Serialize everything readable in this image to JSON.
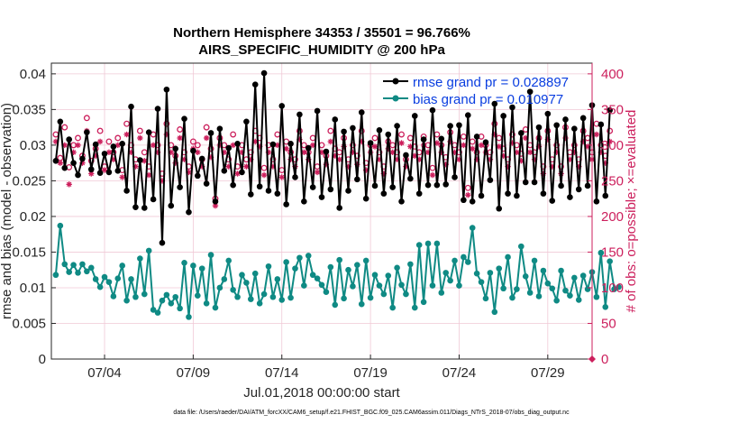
{
  "chart_data": {
    "type": "line",
    "title_line1": "Northern Hemisphere 34353 / 35501 = 96.766%",
    "title_line2": "AIRS_SPECIFIC_HUMIDITY @ 200 hPa",
    "xlabel": "Jul.01,2018 00:00:00 start",
    "ylabel_left": "rmse and bias (model - observation)",
    "ylabel_right": "# of obs: o=possible; ×=evaluated",
    "footer": "data file: /Users/raeder/DAI/ATM_forcXX/CAM6_setup/f.e21.FHIST_BGC.f09_025.CAM6assim.011/Diags_NTrS_2018-07/obs_diag_output.nc",
    "x_ticks": [
      "07/04",
      "07/09",
      "07/14",
      "07/19",
      "07/24",
      "07/29"
    ],
    "x_tick_days": [
      4,
      9,
      14,
      19,
      24,
      29
    ],
    "xlim": [
      1.0,
      31.5
    ],
    "ylim_left": [
      0,
      0.0415
    ],
    "ylim_right": [
      0,
      415
    ],
    "y_ticks_left": [
      "0",
      "0.005",
      "0.01",
      "0.015",
      "0.02",
      "0.025",
      "0.03",
      "0.035",
      "0.04"
    ],
    "y_tick_values_left": [
      0,
      0.005,
      0.01,
      0.015,
      0.02,
      0.025,
      0.03,
      0.035,
      0.04
    ],
    "y_ticks_right": [
      "0",
      "50",
      "100",
      "150",
      "200",
      "250",
      "300",
      "350",
      "400"
    ],
    "y_tick_values_right": [
      0,
      50,
      100,
      150,
      200,
      250,
      300,
      350,
      400
    ],
    "grid": true,
    "legend_position": "top-right",
    "x_start": 1.25,
    "x_step": 0.25,
    "series": [
      {
        "name": "rmse",
        "legend_label": "rmse grand pr = 0.028897",
        "color": "#000000",
        "axis": "left",
        "values": [
          0.0278,
          0.0333,
          0.0268,
          0.0308,
          0.0275,
          0.0258,
          0.0281,
          0.0318,
          0.0266,
          0.0301,
          0.0261,
          0.0288,
          0.0262,
          0.0298,
          0.0264,
          0.0302,
          0.0236,
          0.0354,
          0.0213,
          0.0279,
          0.0212,
          0.0318,
          0.0224,
          0.0351,
          0.0163,
          0.0378,
          0.0215,
          0.0295,
          0.0241,
          0.0337,
          0.0206,
          0.0292,
          0.0257,
          0.0281,
          0.0246,
          0.0317,
          0.0221,
          0.0323,
          0.0264,
          0.0296,
          0.0244,
          0.0302,
          0.0262,
          0.0333,
          0.0231,
          0.0385,
          0.0242,
          0.0401,
          0.0236,
          0.0301,
          0.0232,
          0.0355,
          0.0217,
          0.0302,
          0.0255,
          0.0343,
          0.0221,
          0.0296,
          0.0241,
          0.0348,
          0.0227,
          0.0291,
          0.0238,
          0.0336,
          0.0212,
          0.0319,
          0.0236,
          0.0324,
          0.0252,
          0.0346,
          0.0225,
          0.0303,
          0.0243,
          0.0321,
          0.0232,
          0.0315,
          0.0241,
          0.0327,
          0.0221,
          0.0286,
          0.0253,
          0.0341,
          0.0232,
          0.0308,
          0.0244,
          0.0349,
          0.0244,
          0.0309,
          0.0245,
          0.0327,
          0.0255,
          0.0328,
          0.0223,
          0.0342,
          0.0221,
          0.0312,
          0.0229,
          0.0304,
          0.0251,
          0.0358,
          0.0211,
          0.0341,
          0.0232,
          0.0353,
          0.0229,
          0.0317,
          0.0248,
          0.0375,
          0.0248,
          0.0325,
          0.0232,
          0.0344,
          0.0222,
          0.0328,
          0.0243,
          0.0336,
          0.0227,
          0.0323,
          0.0238,
          0.0338,
          0.0243,
          0.0356,
          0.0221,
          0.0329,
          0.0229,
          0.0349
        ]
      },
      {
        "name": "bias",
        "legend_label": "bias grand pr = 0.010977",
        "color": "#0f8a84",
        "axis": "left",
        "values": [
          0.0118,
          0.0187,
          0.0133,
          0.0122,
          0.0132,
          0.0121,
          0.0133,
          0.0123,
          0.0128,
          0.0112,
          0.0101,
          0.0115,
          0.0108,
          0.0088,
          0.0113,
          0.0131,
          0.0082,
          0.0112,
          0.0087,
          0.0141,
          0.0091,
          0.0152,
          0.0069,
          0.0065,
          0.0082,
          0.009,
          0.0078,
          0.0087,
          0.0071,
          0.0135,
          0.0059,
          0.0131,
          0.0089,
          0.0127,
          0.0078,
          0.0146,
          0.0072,
          0.01,
          0.0112,
          0.0138,
          0.0097,
          0.0087,
          0.0118,
          0.0107,
          0.0084,
          0.012,
          0.0078,
          0.0091,
          0.013,
          0.0087,
          0.0112,
          0.0083,
          0.0136,
          0.0086,
          0.0127,
          0.0142,
          0.0103,
          0.0145,
          0.0118,
          0.0113,
          0.0104,
          0.0094,
          0.0129,
          0.0076,
          0.0139,
          0.0085,
          0.0125,
          0.0102,
          0.0132,
          0.0077,
          0.0138,
          0.0086,
          0.0118,
          0.0103,
          0.0091,
          0.0117,
          0.0072,
          0.0128,
          0.0104,
          0.0091,
          0.0133,
          0.0072,
          0.016,
          0.008,
          0.0162,
          0.0103,
          0.0162,
          0.0093,
          0.0121,
          0.011,
          0.0138,
          0.0103,
          0.0143,
          0.0136,
          0.0184,
          0.012,
          0.0108,
          0.0085,
          0.0121,
          0.0066,
          0.0127,
          0.0099,
          0.0143,
          0.0086,
          0.0098,
          0.0158,
          0.0116,
          0.0093,
          0.0138,
          0.0088,
          0.0124,
          0.0106,
          0.0099,
          0.0082,
          0.0124,
          0.0096,
          0.0089,
          0.0114,
          0.0083,
          0.0117,
          0.0098,
          0.0122,
          0.0087,
          0.0149,
          0.0073,
          0.0137,
          0.0098,
          0.0101
        ]
      },
      {
        "name": "possible",
        "legend_label": "o=possible",
        "color": "#cc1f5c",
        "axis": "right",
        "marker": "circle",
        "values": [
          315,
          282,
          325,
          269,
          300,
          310,
          285,
          338,
          278,
          295,
          320,
          270,
          305,
          290,
          310,
          265,
          330,
          300,
          280,
          320,
          290,
          270,
          315,
          300,
          260,
          330,
          300,
          285,
          322,
          290,
          270,
          305,
          300,
          280,
          325,
          295,
          225,
          310,
          300,
          280,
          315,
          270,
          300,
          280,
          290,
          320,
          310,
          268,
          300,
          280,
          315,
          265,
          305,
          290,
          280,
          320,
          300,
          290,
          310,
          270,
          300,
          285,
          320,
          295,
          290,
          310,
          280,
          300,
          285,
          320,
          275,
          300,
          310,
          290,
          270,
          305,
          300,
          290,
          315,
          280,
          310,
          298,
          290,
          312,
          300,
          268,
          315,
          300,
          283,
          318,
          300,
          290,
          312,
          240,
          305,
          290,
          312,
          300,
          290,
          330,
          310,
          295,
          280,
          315,
          300,
          288,
          322,
          300,
          290,
          310,
          270,
          320,
          280,
          300,
          270,
          325,
          290,
          300,
          280,
          320,
          310,
          290,
          330,
          300,
          285,
          320
        ]
      },
      {
        "name": "evaluated",
        "legend_label": "×=evaluated",
        "color": "#cc1f5c",
        "axis": "right",
        "marker": "asterisk",
        "values": [
          305,
          275,
          300,
          245,
          290,
          300,
          275,
          320,
          260,
          285,
          305,
          265,
          290,
          280,
          300,
          255,
          315,
          290,
          270,
          310,
          278,
          258,
          300,
          290,
          250,
          315,
          290,
          275,
          310,
          280,
          262,
          295,
          290,
          270,
          310,
          283,
          215,
          300,
          290,
          270,
          300,
          260,
          290,
          270,
          280,
          305,
          298,
          258,
          290,
          270,
          300,
          255,
          295,
          280,
          270,
          308,
          290,
          280,
          300,
          262,
          290,
          273,
          305,
          285,
          280,
          298,
          270,
          290,
          273,
          305,
          265,
          290,
          298,
          280,
          260,
          295,
          290,
          280,
          303,
          270,
          298,
          285,
          280,
          300,
          290,
          258,
          303,
          290,
          273,
          305,
          290,
          280,
          300,
          230,
          295,
          280,
          300,
          290,
          280,
          315,
          298,
          285,
          270,
          303,
          290,
          278,
          310,
          290,
          280,
          298,
          260,
          308,
          270,
          290,
          260,
          310,
          280,
          290,
          270,
          305,
          298,
          280,
          315,
          290,
          275,
          305
        ]
      }
    ]
  }
}
